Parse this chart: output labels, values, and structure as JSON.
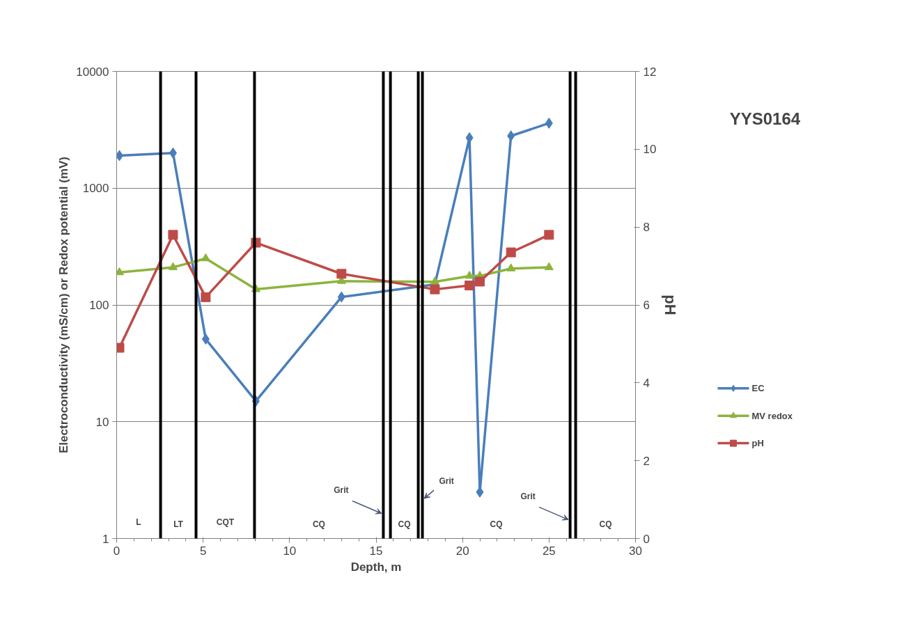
{
  "chart_data": {
    "type": "line",
    "title": "YYS0164",
    "xlabel": "Depth, m",
    "ylabel": "Electroconductivity (mS/cm) or Redox potential (mV)",
    "y2label": "pH",
    "xlim": [
      0,
      30
    ],
    "xticks": [
      0,
      5,
      10,
      15,
      20,
      25,
      30
    ],
    "ylim": [
      1,
      10000
    ],
    "yticks": [
      1,
      10,
      100,
      1000,
      10000
    ],
    "log": "y",
    "y2lim": [
      0,
      12
    ],
    "y2ticks": [
      0,
      2,
      4,
      6,
      8,
      10,
      12
    ],
    "grid": "y",
    "legend": "right",
    "series": [
      {
        "name": "EC",
        "color": "#4a7ebb",
        "marker": "diamond",
        "x": [
          0.16,
          3.26,
          5.15,
          8.05,
          13.0,
          18.4,
          20.4,
          21.0,
          22.8,
          25.0
        ],
        "values": [
          1900,
          2000,
          51,
          15,
          117,
          150,
          2700,
          2.5,
          2800,
          3600
        ]
      },
      {
        "name": "MV redox",
        "color": "#8cb43c",
        "marker": "triangle",
        "x": [
          0.16,
          3.26,
          5.15,
          8.05,
          13.0,
          18.4,
          20.4,
          21.0,
          22.8,
          25.0
        ],
        "values": [
          190,
          210,
          250,
          136,
          160,
          158,
          177,
          177,
          205,
          210
        ]
      },
      {
        "name": "pH",
        "color": "#be4b48",
        "marker": "square",
        "axis": "y2",
        "x": [
          0.16,
          3.26,
          5.15,
          8.05,
          13.0,
          18.4,
          20.4,
          21.0,
          22.8,
          25.0
        ],
        "values": [
          4.9,
          7.8,
          6.2,
          7.6,
          6.8,
          6.4,
          6.5,
          6.6,
          7.35,
          7.8
        ]
      }
    ],
    "ref_lines": [
      {
        "axis": "x",
        "value": 2.54,
        "color": "#000000"
      },
      {
        "axis": "x",
        "value": 4.59,
        "color": "#000000"
      },
      {
        "axis": "x",
        "value": 7.97,
        "color": "#000000"
      },
      {
        "axis": "x",
        "value": 15.42,
        "color": "#000000"
      },
      {
        "axis": "x",
        "value": 15.83,
        "color": "#000000"
      },
      {
        "axis": "x",
        "value": 17.44,
        "color": "#000000"
      },
      {
        "axis": "x",
        "value": 17.68,
        "color": "#000000"
      },
      {
        "axis": "x",
        "value": 26.22,
        "color": "#000000"
      },
      {
        "axis": "x",
        "value": 26.54,
        "color": "#000000"
      }
    ],
    "annotations": [
      "L",
      "LT",
      "CQT",
      "CQ",
      {
        "text": "Grit",
        "x": 15.42,
        "y": 1.64
      },
      "CQ",
      {
        "text": "Grit",
        "x": 17.68,
        "y": 2.2
      },
      "CQ",
      {
        "text": "Grit",
        "x": 26.22,
        "y": 1.45
      },
      "CQ"
    ]
  }
}
